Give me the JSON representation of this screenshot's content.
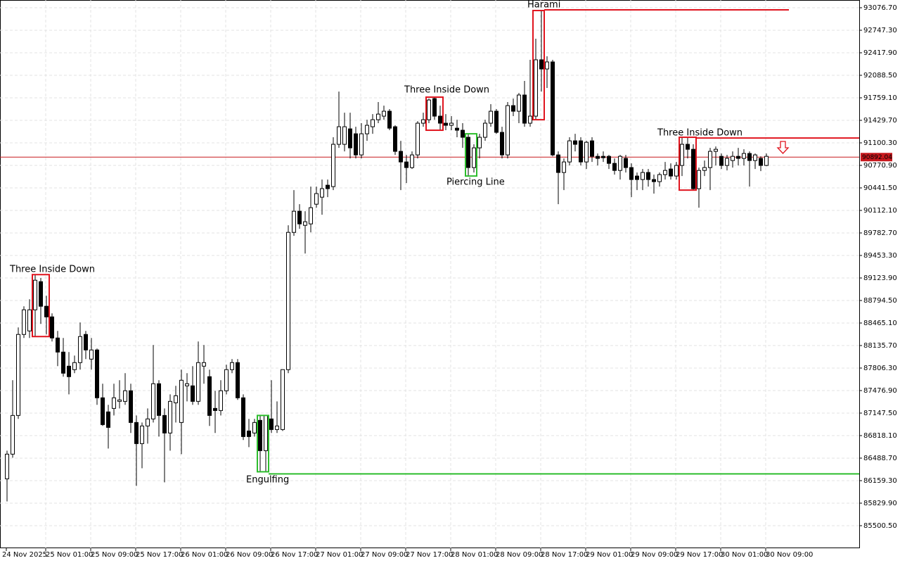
{
  "chart_data": {
    "type": "candlestick",
    "categories": [
      "24 Nov 2025",
      null,
      null,
      null,
      null,
      null,
      null,
      "25 Nov 01:00",
      null,
      null,
      null,
      null,
      null,
      null,
      null,
      "25 Nov 09:00",
      null,
      null,
      null,
      null,
      null,
      null,
      null,
      "25 Nov 17:00",
      null,
      null,
      null,
      null,
      null,
      null,
      null,
      "26 Nov 01:00",
      null,
      null,
      null,
      null,
      null,
      null,
      null,
      "26 Nov 09:00",
      null,
      null,
      null,
      null,
      null,
      null,
      null,
      "26 Nov 17:00",
      null,
      null,
      null,
      null,
      null,
      null,
      null,
      "27 Nov 01:00",
      null,
      null,
      null,
      null,
      null,
      null,
      null,
      "27 Nov 09:00",
      null,
      null,
      null,
      null,
      null,
      null,
      null,
      "27 Nov 17:00",
      null,
      null,
      null,
      null,
      null,
      null,
      null,
      "28 Nov 01:00",
      null,
      null,
      null,
      null,
      null,
      null,
      null,
      "28 Nov 09:00",
      null,
      null,
      null,
      null,
      null,
      null,
      null,
      "28 Nov 17:00",
      null,
      null,
      null,
      null,
      null,
      null,
      null,
      "29 Nov 01:00",
      null,
      null,
      null,
      null,
      null,
      null,
      null,
      "29 Nov 09:00",
      null,
      null,
      null,
      null,
      null,
      null,
      null,
      "29 Nov 17:00",
      null,
      null,
      null,
      null,
      null,
      null,
      null,
      "30 Nov 01:00",
      null,
      null,
      null,
      null,
      null,
      null,
      null,
      "30 Nov 09:00"
    ],
    "open": [
      86186,
      86547,
      87113,
      88298,
      88349,
      88658,
      89070,
      88710,
      88555,
      88246,
      88040,
      87834,
      87783,
      87886,
      88298,
      87937,
      88071,
      87371,
      87165,
      87216,
      87319,
      87319,
      87474,
      87010,
      86701,
      86959,
      87062,
      87577,
      87113,
      86856,
      87298,
      87010,
      87546,
      87546,
      87319,
      87834,
      87680,
      87216,
      87185,
      87474,
      87783,
      87886,
      87371,
      86886,
      86856,
      87041,
      86598,
      87062,
      86907,
      86907,
      87783,
      89791,
      90100,
      89894,
      89915,
      90203,
      90306,
      90481,
      90461,
      91079,
      91079,
      91305,
      91233,
      90924,
      91233,
      91336,
      91439,
      91491,
      91563,
      91336,
      90976,
      90821,
      90739,
      90924,
      91388,
      91439,
      91748,
      91491,
      91388,
      91357,
      91315,
      91285,
      91182,
      90739,
      91027,
      91182,
      91388,
      91563,
      91254,
      90924,
      91645,
      91563,
      91800,
      91388,
      91491,
      92315,
      92181,
      92284,
      90924,
      90667,
      90821,
      91130,
      91130,
      90821,
      91130,
      90903,
      90903,
      90903,
      90800,
      90697,
      90873,
      90739,
      90615,
      90564,
      90667,
      90564,
      90533,
      90636,
      90718,
      90615,
      90770,
      91079,
      91006,
      90430,
      90697,
      90739,
      90976,
      90903,
      90770,
      90842,
      90903,
      90873,
      90945,
      90842,
      90873,
      90770
    ],
    "high": [
      86598,
      87628,
      88401,
      88710,
      88813,
      89173,
      89122,
      88864,
      88607,
      88349,
      88246,
      88040,
      87989,
      88473,
      88349,
      88246,
      88092,
      87577,
      87268,
      87577,
      87628,
      87731,
      87577,
      87113,
      87010,
      87216,
      88143,
      87628,
      87216,
      87422,
      87546,
      87783,
      87731,
      87834,
      88195,
      88143,
      87783,
      87474,
      87628,
      87855,
      87937,
      87937,
      87422,
      87062,
      87062,
      87113,
      87113,
      87628,
      87319,
      87783,
      89894,
      90409,
      90203,
      90100,
      90461,
      90461,
      90564,
      90564,
      91182,
      91851,
      91542,
      91542,
      91336,
      91388,
      91439,
      91521,
      91697,
      91645,
      91594,
      91357,
      91130,
      90924,
      90976,
      91418,
      91542,
      91748,
      91769,
      91645,
      91521,
      91491,
      91439,
      91388,
      91233,
      91079,
      91233,
      91439,
      91666,
      91594,
      91336,
      91697,
      91748,
      91830,
      92006,
      92315,
      92624,
      93036,
      92366,
      92315,
      90976,
      90873,
      91182,
      91233,
      91182,
      91130,
      91182,
      90945,
      90976,
      90924,
      90873,
      90924,
      90924,
      90800,
      90667,
      90718,
      90718,
      90636,
      90667,
      90821,
      90800,
      90821,
      91182,
      91182,
      91079,
      90739,
      90842,
      91027,
      91048,
      90945,
      90924,
      90976,
      91027,
      91006,
      90976,
      90945,
      90903,
      90945
    ],
    "low": [
      85856,
      86495,
      87062,
      88246,
      88246,
      88267,
      88452,
      88298,
      88195,
      87834,
      87680,
      87422,
      87731,
      87783,
      87937,
      87783,
      87268,
      86959,
      86629,
      87113,
      87216,
      87268,
      86856,
      86083,
      86341,
      86701,
      87010,
      86804,
      86135,
      86598,
      87010,
      86547,
      87319,
      87268,
      87268,
      87577,
      86959,
      86856,
      87113,
      87422,
      87731,
      87340,
      86753,
      86650,
      86804,
      86289,
      86289,
      86856,
      86856,
      86886,
      87731,
      89740,
      89843,
      89482,
      89791,
      90152,
      90049,
      90306,
      90409,
      91027,
      90976,
      90873,
      90873,
      90873,
      91130,
      91233,
      91388,
      91439,
      91285,
      90924,
      90409,
      90512,
      90718,
      90873,
      91336,
      91388,
      91439,
      91285,
      91285,
      91285,
      91182,
      91027,
      90615,
      90667,
      90873,
      91130,
      91336,
      91233,
      90873,
      90873,
      91491,
      91388,
      91336,
      91336,
      91439,
      91851,
      91903,
      90903,
      90203,
      90409,
      90770,
      90976,
      90770,
      90718,
      90821,
      90770,
      90821,
      90718,
      90636,
      90564,
      90667,
      90306,
      90409,
      90409,
      90461,
      90358,
      90461,
      90564,
      90564,
      90564,
      90615,
      90873,
      90409,
      90152,
      90615,
      90409,
      90770,
      90718,
      90697,
      90739,
      90770,
      90770,
      90461,
      90718,
      90687,
      90759
    ],
    "close": [
      86547,
      87113,
      88298,
      88658,
      88658,
      89091,
      88710,
      88555,
      88246,
      88040,
      87731,
      87680,
      87886,
      88267,
      88071,
      88071,
      87371,
      86979,
      86938,
      87371,
      87340,
      87474,
      87010,
      86701,
      86959,
      87062,
      87577,
      87113,
      86856,
      87319,
      87401,
      87628,
      87577,
      87319,
      87886,
      87886,
      87113,
      87185,
      87474,
      87783,
      87886,
      87371,
      86804,
      86804,
      87010,
      86598,
      87113,
      86907,
      86959,
      87783,
      89791,
      90100,
      89915,
      89946,
      90152,
      90358,
      90430,
      90430,
      91079,
      91336,
      91336,
      91027,
      90924,
      91233,
      91357,
      91439,
      91521,
      91563,
      91315,
      90976,
      90821,
      90739,
      90924,
      91388,
      91439,
      91727,
      91491,
      91388,
      91357,
      91388,
      91285,
      91182,
      90739,
      91027,
      91182,
      91388,
      91563,
      91254,
      90924,
      91645,
      91563,
      91800,
      91388,
      91491,
      92315,
      92181,
      92284,
      90924,
      90667,
      90821,
      91130,
      91079,
      90821,
      91109,
      90903,
      90873,
      90883,
      90800,
      90697,
      90903,
      90739,
      90564,
      90564,
      90667,
      90564,
      90533,
      90636,
      90697,
      90615,
      90770,
      91079,
      91006,
      90430,
      90697,
      90739,
      90976,
      91006,
      90770,
      90873,
      90903,
      90873,
      90945,
      90842,
      90924,
      90770,
      90903
    ],
    "up_color": "#ffffff",
    "down_color": "#000000",
    "outline_color": "#000000",
    "ylim": [
      85170.9,
      93189.9
    ],
    "yticks": [
      {
        "value": 93076.7,
        "label": "93076.70"
      },
      {
        "value": 92747.3,
        "label": "92747.30"
      },
      {
        "value": 92417.9,
        "label": "92417.90"
      },
      {
        "value": 92088.5,
        "label": "92088.50"
      },
      {
        "value": 91759.1,
        "label": "91759.10"
      },
      {
        "value": 91429.7,
        "label": "91429.70"
      },
      {
        "value": 91100.3,
        "label": "91100.30"
      },
      {
        "value": 90770.9,
        "label": "90770.90"
      },
      {
        "value": 90441.5,
        "label": "90441.50"
      },
      {
        "value": 90112.1,
        "label": "90112.10"
      },
      {
        "value": 89782.7,
        "label": "89782.70"
      },
      {
        "value": 89453.3,
        "label": "89453.30"
      },
      {
        "value": 89123.9,
        "label": "89123.90"
      },
      {
        "value": 88794.5,
        "label": "88794.50"
      },
      {
        "value": 88465.1,
        "label": "88465.10"
      },
      {
        "value": 88135.7,
        "label": "88135.70"
      },
      {
        "value": 87806.3,
        "label": "87806.30"
      },
      {
        "value": 87476.9,
        "label": "87476.90"
      },
      {
        "value": 87147.5,
        "label": "87147.50"
      },
      {
        "value": 86818.1,
        "label": "86818.10"
      },
      {
        "value": 86488.7,
        "label": "86488.70"
      },
      {
        "value": 86159.3,
        "label": "86159.30"
      },
      {
        "value": 85829.9,
        "label": "85829.90"
      },
      {
        "value": 85500.5,
        "label": "85500.50"
      }
    ],
    "grid": true,
    "last_price": 90892.04,
    "last_price_color": "#c8191e",
    "annotations": [
      {
        "text": "Three Inside Down",
        "color": "#e0141e"
      },
      {
        "text": "Three Inside Down",
        "color": "#e0141e"
      },
      {
        "text": "Harami",
        "color": "#e0141e",
        "level": 93046
      },
      {
        "text": "Piercing Line",
        "color": "#2dbd2d"
      },
      {
        "text": "Three Inside Down",
        "color": "#e0141e",
        "level": 91171
      },
      {
        "text": "Engulfing",
        "color": "#2dbd2d",
        "level": 86258
      }
    ]
  }
}
